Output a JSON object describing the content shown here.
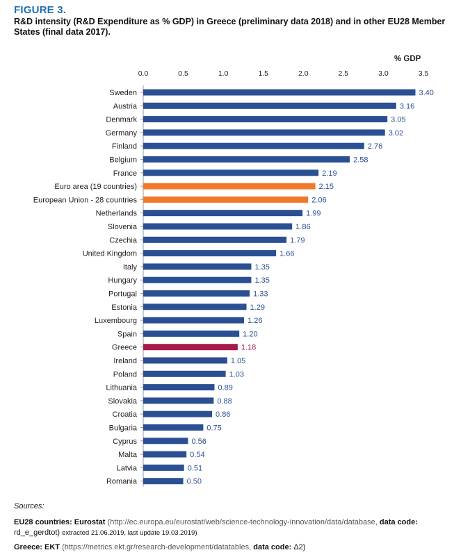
{
  "figure": {
    "label": "FIGURE 3.",
    "title": "R&D intensity (R&D Expenditure as % GDP) in Greece (preliminary data 2018) and in other EU28 Member States (final data 2017).",
    "unit": "% GDP"
  },
  "colors": {
    "default_bar": "#2b4f93",
    "eu_aggregate": "#f07a2a",
    "greece": "#a8194a",
    "greece_label": "#a8194a",
    "value_label": "#2b4f93",
    "axis_text": "#222222"
  },
  "chart_data": {
    "type": "bar",
    "orientation": "horizontal",
    "xlim": [
      0,
      3.5
    ],
    "ticks": [
      "0.0",
      "0.5",
      "1.0",
      "1.5",
      "2.0",
      "2.5",
      "3.0",
      "3.5"
    ],
    "tick_values": [
      0,
      0.5,
      1,
      1.5,
      2,
      2.5,
      3,
      3.5
    ],
    "axis_position": "top",
    "grid": false,
    "categories": [
      "Sweden",
      "Austria",
      "Denmark",
      "Germany",
      "Finland",
      "Belgium",
      "France",
      "Euro area (19 countries)",
      "European Union - 28 countries",
      "Netherlands",
      "Slovenia",
      "Czechia",
      "United Kingdom",
      "Italy",
      "Hungary",
      "Portugal",
      "Estonia",
      "Luxembourg",
      "Spain",
      "Greece",
      "Ireland",
      "Poland",
      "Lithuania",
      "Slovakia",
      "Croatia",
      "Bulgaria",
      "Cyprus",
      "Malta",
      "Latvia",
      "Romania"
    ],
    "values": [
      3.4,
      3.16,
      3.05,
      3.02,
      2.76,
      2.58,
      2.19,
      2.15,
      2.06,
      1.99,
      1.86,
      1.79,
      1.66,
      1.35,
      1.35,
      1.33,
      1.29,
      1.26,
      1.2,
      1.18,
      1.05,
      1.03,
      0.89,
      0.88,
      0.86,
      0.75,
      0.56,
      0.54,
      0.51,
      0.5
    ],
    "value_labels": [
      "3.40",
      "3.16",
      "3.05",
      "3.02",
      "2.76",
      "2.58",
      "2.19",
      "2.15",
      "2.06",
      "1.99",
      "1.86",
      "1.79",
      "1.66",
      "1.35",
      "1.35",
      "1.33",
      "1.29",
      "1.26",
      "1.20",
      "1.18",
      "1.05",
      "1.03",
      "0.89",
      "0.88",
      "0.86",
      "0.75",
      "0.56",
      "0.54",
      "0.51",
      "0.50"
    ],
    "highlight": {
      "Euro area (19 countries)": "eu_aggregate",
      "European Union - 28 countries": "eu_aggregate",
      "Greece": "greece"
    }
  },
  "sources": {
    "title": "Sources:",
    "eu_prefix": "EU28 countries: Eurostat",
    "eu_url": "(http://ec.europa.eu/eurostat/web/science-technology-innovation/data/database,",
    "eu_code_label": "data code:",
    "eu_code": "rd_e_gerdtot)",
    "eu_extracted": "extracted 21.06.2019, last update 19.03.2019)",
    "gr_prefix": "Greece: EKT",
    "gr_url": "(https://metrics.ekt.gr/research-development/datatables,",
    "gr_code_label": "data code:",
    "gr_code": "Δ2)"
  }
}
